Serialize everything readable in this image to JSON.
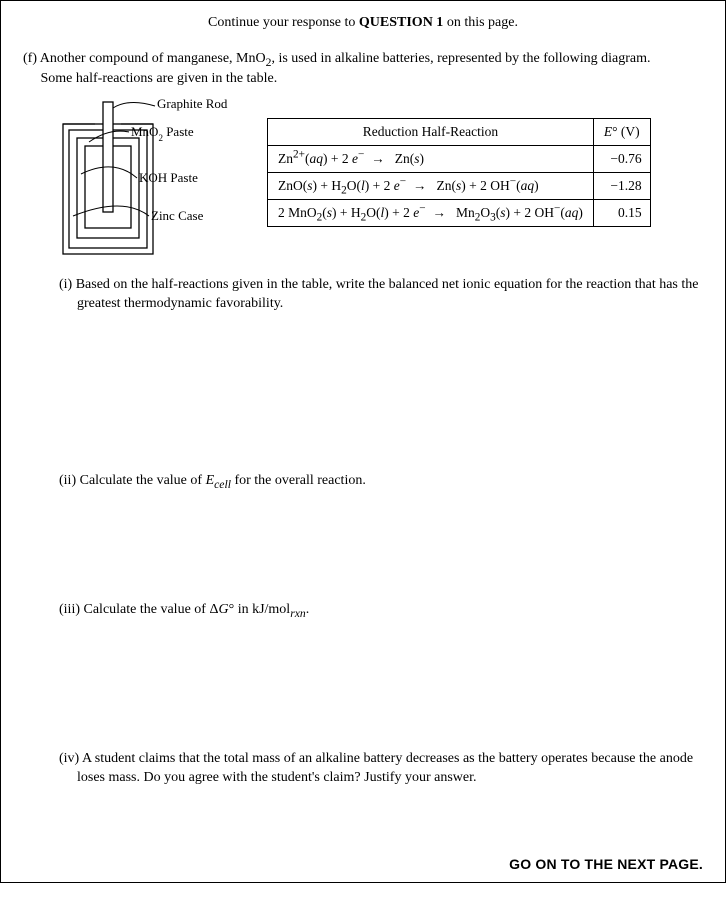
{
  "header": {
    "prefix": "Continue your response to ",
    "bold": "QUESTION 1",
    "suffix": " on this page."
  },
  "intro": {
    "part_label": "(f) ",
    "line1a": "Another compound of manganese, MnO",
    "line1_sub": "2",
    "line1b": ", is used in alkaline batteries, represented by the following diagram.",
    "line2": "Some half-reactions are given in the table."
  },
  "battery": {
    "labels": {
      "graphite": "Graphite Rod",
      "mno2": "MnO",
      "mno2_sub": "2",
      "mno2_tail": " Paste",
      "koh": "KOH Paste",
      "zinc": "Zinc Case"
    },
    "stroke": "#000000",
    "fill": "#ffffff"
  },
  "table": {
    "header_reaction": "Reduction Half-Reaction",
    "header_e_prefix": "E",
    "header_e_sup": "°",
    "header_e_suffix": " (V)",
    "rows": [
      {
        "reaction_html": "Zn<sup>2+</sup>(<span class=\"italic\">aq</span>) + 2 <span class=\"italic\">e</span><sup>−</sup>&nbsp;&nbsp;→&nbsp;&nbsp;&nbsp;Zn(<span class=\"italic\">s</span>)",
        "e": "−0.76"
      },
      {
        "reaction_html": "ZnO(<span class=\"italic\">s</span>) + H<sub>2</sub>O(<span class=\"italic\">l</span>) + 2 <span class=\"italic\">e</span><sup>−</sup>&nbsp;&nbsp;→&nbsp;&nbsp;&nbsp;Zn(<span class=\"italic\">s</span>) + 2 OH<sup>−</sup>(<span class=\"italic\">aq</span>)",
        "e": "−1.28"
      },
      {
        "reaction_html": "2 MnO<sub>2</sub>(<span class=\"italic\">s</span>) + H<sub>2</sub>O(<span class=\"italic\">l</span>) + 2 <span class=\"italic\">e</span><sup>−</sup>&nbsp;&nbsp;→&nbsp;&nbsp;&nbsp;Mn<sub>2</sub>O<sub>3</sub>(<span class=\"italic\">s</span>) + 2 OH<sup>−</sup>(<span class=\"italic\">aq</span>)",
        "e": "0.15"
      }
    ]
  },
  "subparts": {
    "i": {
      "label": "(i) ",
      "text": "Based on the half-reactions given in the table, write the balanced net ionic equation for the reaction that has the greatest thermodynamic favorability."
    },
    "ii": {
      "label": "(ii) ",
      "prefix": "Calculate the value of ",
      "E": "E",
      "cell": "cell",
      "suffix": " for the overall reaction."
    },
    "iii": {
      "label": "(iii) ",
      "prefix": "Calculate the value of Δ",
      "G": "G",
      "deg": "°",
      "mid": " in kJ/mol",
      "rxn": "rxn",
      "suffix": "."
    },
    "iv": {
      "label": "(iv) ",
      "text": "A student claims that the total mass of an alkaline battery decreases as the battery operates because the anode loses mass. Do you agree with the student's claim? Justify your answer."
    }
  },
  "footer": "GO ON TO THE NEXT PAGE."
}
